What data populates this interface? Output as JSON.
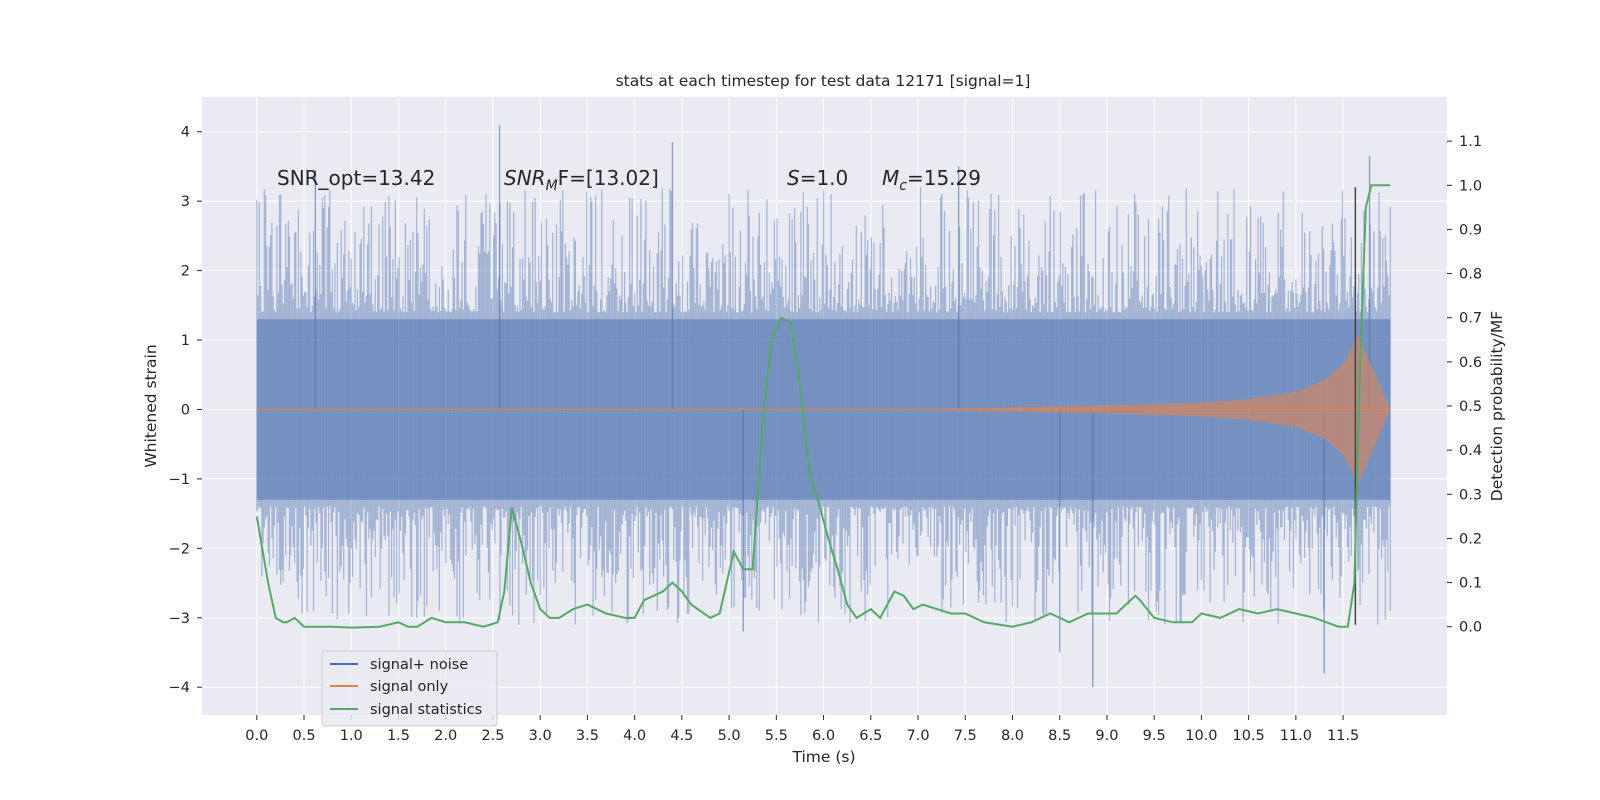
{
  "chart_data": {
    "type": "line",
    "title": "stats at each timestep for test data 12171 [signal=1]",
    "xlabel": "Time (s)",
    "ylabel_left": "Whitened strain",
    "ylabel_right": "Detection probability/MF",
    "xlim": [
      -0.58,
      12.6
    ],
    "ylim_left": [
      -4.4,
      4.5
    ],
    "ylim_right": [
      -0.2,
      1.2
    ],
    "grid": true,
    "legend_position": "lower-left",
    "x_ticks": [
      "0.0",
      "0.5",
      "1.0",
      "1.5",
      "2.0",
      "2.5",
      "3.0",
      "3.5",
      "4.0",
      "4.5",
      "5.0",
      "5.5",
      "6.0",
      "6.5",
      "7.0",
      "7.5",
      "8.0",
      "8.5",
      "9.0",
      "9.5",
      "10.0",
      "10.5",
      "11.0",
      "11.5"
    ],
    "x_tick_values": [
      0,
      0.5,
      1,
      1.5,
      2,
      2.5,
      3,
      3.5,
      4,
      4.5,
      5,
      5.5,
      6,
      6.5,
      7,
      7.5,
      8,
      8.5,
      9,
      9.5,
      10,
      10.5,
      11,
      11.5
    ],
    "y_ticks_left": [
      "4",
      "3",
      "2",
      "1",
      "0",
      "−1",
      "−2",
      "−3",
      "−4"
    ],
    "y_tick_values_left": [
      4,
      3,
      2,
      1,
      0,
      -1,
      -2,
      -3,
      -4
    ],
    "y_ticks_right": [
      "1.1",
      "1.0",
      "0.9",
      "0.8",
      "0.7",
      "0.6",
      "0.5",
      "0.4",
      "0.3",
      "0.2",
      "0.1",
      "0.0"
    ],
    "y_tick_values_right": [
      1.1,
      1.0,
      0.9,
      0.8,
      0.7,
      0.6,
      0.5,
      0.4,
      0.3,
      0.2,
      0.1,
      0.0
    ],
    "annotations": {
      "snr_opt": "SNR_opt=13.42",
      "snr_mf_main": "SNR",
      "snr_mf_sub": "M",
      "snr_mf_rest": "F=[13.02]",
      "s_var": "S",
      "s_val": "=1.0",
      "mc_var": "M",
      "mc_sub": "c",
      "mc_val": "=15.29"
    },
    "marker_line_x": 11.63,
    "series": [
      {
        "name": "signal+ noise",
        "color": "#4c72b0",
        "x_range": [
          0,
          12.0
        ],
        "typical_envelope": [
          -1.3,
          1.3
        ],
        "noted_peaks": [
          {
            "x": 2.57,
            "y": 4.1
          },
          {
            "x": 4.4,
            "y": 3.85
          },
          {
            "x": 0.62,
            "y": 3.45
          },
          {
            "x": 7.43,
            "y": 3.5
          },
          {
            "x": 11.78,
            "y": 3.65
          },
          {
            "x": 8.85,
            "y": -4.0
          },
          {
            "x": 11.3,
            "y": -3.8
          },
          {
            "x": 8.5,
            "y": -3.5
          },
          {
            "x": 5.15,
            "y": -3.2
          }
        ]
      },
      {
        "name": "signal only",
        "color": "#dd8452",
        "envelope": [
          [
            0,
            0.0
          ],
          [
            7.0,
            0.005
          ],
          [
            8.0,
            0.03
          ],
          [
            9.0,
            0.06
          ],
          [
            10.0,
            0.1
          ],
          [
            10.5,
            0.15
          ],
          [
            11.0,
            0.25
          ],
          [
            11.3,
            0.42
          ],
          [
            11.5,
            0.65
          ],
          [
            11.6,
            0.9
          ],
          [
            11.65,
            1.1
          ],
          [
            12.0,
            0.0
          ]
        ]
      },
      {
        "name": "signal statistics",
        "color": "#55a868",
        "x": [
          0,
          0.12,
          0.2,
          0.28,
          0.32,
          0.4,
          0.5,
          0.6,
          0.8,
          1.0,
          1.3,
          1.5,
          1.6,
          1.7,
          1.85,
          2.0,
          2.2,
          2.4,
          2.55,
          2.62,
          2.7,
          2.8,
          2.9,
          3.0,
          3.1,
          3.2,
          3.35,
          3.5,
          3.7,
          3.9,
          4.0,
          4.1,
          4.3,
          4.4,
          4.5,
          4.6,
          4.8,
          4.9,
          5.05,
          5.15,
          5.25,
          5.35,
          5.45,
          5.55,
          5.65,
          5.75,
          5.85,
          5.95,
          6.05,
          6.15,
          6.25,
          6.35,
          6.5,
          6.6,
          6.75,
          6.85,
          6.95,
          7.05,
          7.2,
          7.35,
          7.5,
          7.7,
          8.0,
          8.2,
          8.4,
          8.6,
          8.8,
          9.0,
          9.1,
          9.2,
          9.3,
          9.35,
          9.5,
          9.7,
          9.9,
          10.0,
          10.2,
          10.4,
          10.6,
          10.8,
          11.0,
          11.2,
          11.45,
          11.55,
          11.62,
          11.68,
          11.74,
          11.8,
          11.85,
          11.9,
          12.0
        ],
        "y": [
          0.25,
          0.1,
          0.02,
          0.01,
          0.01,
          0.02,
          0.0,
          0.0,
          0.0,
          -0.002,
          0.0,
          0.01,
          0.0,
          0.0,
          0.02,
          0.01,
          0.01,
          0.0,
          0.01,
          0.08,
          0.27,
          0.19,
          0.1,
          0.04,
          0.02,
          0.02,
          0.04,
          0.05,
          0.03,
          0.02,
          0.02,
          0.06,
          0.08,
          0.1,
          0.08,
          0.05,
          0.02,
          0.03,
          0.17,
          0.13,
          0.13,
          0.45,
          0.65,
          0.7,
          0.69,
          0.55,
          0.35,
          0.28,
          0.2,
          0.13,
          0.05,
          0.02,
          0.04,
          0.02,
          0.08,
          0.07,
          0.04,
          0.05,
          0.04,
          0.03,
          0.03,
          0.01,
          0.0,
          0.01,
          0.03,
          0.01,
          0.03,
          0.03,
          0.03,
          0.05,
          0.07,
          0.06,
          0.02,
          0.01,
          0.01,
          0.03,
          0.02,
          0.04,
          0.03,
          0.04,
          0.03,
          0.02,
          0.0,
          0.0,
          0.1,
          0.6,
          0.95,
          1.0,
          1.0,
          1.0,
          1.0
        ]
      }
    ]
  }
}
